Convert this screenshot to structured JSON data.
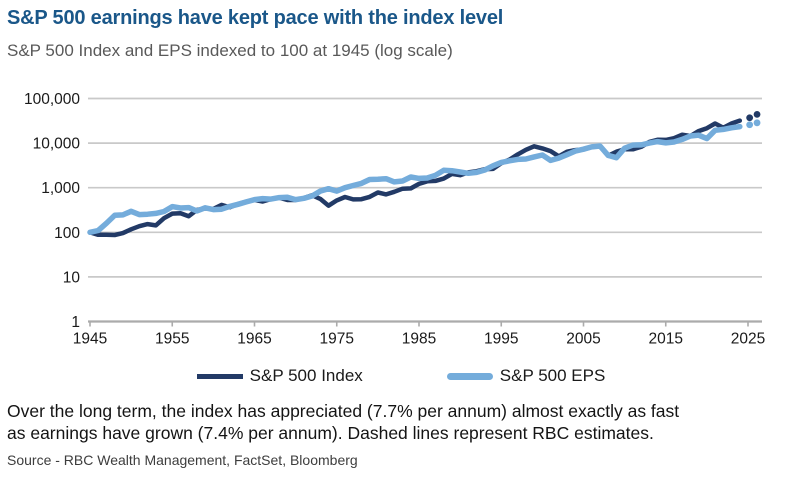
{
  "header": {
    "title": "S&P 500 earnings have kept pace with the index level",
    "subtitle": "S&P 500 Index and EPS indexed to 100 at 1945 (log scale)",
    "title_color": "#1A5789",
    "subtitle_color": "#595959"
  },
  "chart_data": {
    "type": "line",
    "title": "S&P 500 earnings have kept pace with the index level",
    "subtitle": "S&P 500 Index and EPS indexed to 100 at 1945 (log scale)",
    "xlabel": "",
    "ylabel": "",
    "y_scale": "log",
    "ylim": [
      1,
      100000
    ],
    "x_range": [
      1944,
      2027
    ],
    "grid": true,
    "grid_color": "#C9C9C9",
    "axis_color": "#ABABAB",
    "label_color": "#1a1a1a",
    "x_ticks": [
      1945,
      1955,
      1965,
      1975,
      1985,
      1995,
      2005,
      2015,
      2025
    ],
    "y_ticks": [
      {
        "value": 1,
        "label": "1"
      },
      {
        "value": 10,
        "label": "10"
      },
      {
        "value": 100,
        "label": "100"
      },
      {
        "value": 1000,
        "label": "1,000"
      },
      {
        "value": 10000,
        "label": "10,000"
      },
      {
        "value": 100000,
        "label": "100,000"
      }
    ],
    "legend_position": "bottom",
    "series": [
      {
        "name": "S&P 500 Index",
        "color": "#223A66",
        "stroke_width": 4.5,
        "start_year": 1945,
        "values": [
          100,
          88,
          88,
          87,
          96,
          117,
          137,
          153,
          143,
          207,
          262,
          268,
          230,
          317,
          344,
          334,
          412,
          363,
          432,
          488,
          532,
          490,
          556,
          598,
          530,
          531,
          588,
          680,
          562,
          395,
          519,
          619,
          548,
          553,
          621,
          782,
          706,
          810,
          950,
          963,
          1217,
          1395,
          1423,
          1600,
          2036,
          1902,
          2200,
          2350,
          2600,
          2646,
          3548,
          4267,
          5590,
          7081,
          8464,
          7606,
          6614,
          5068,
          6405,
          6981,
          7191,
          8170,
          8459,
          5203,
          6423,
          7244,
          7244,
          8215,
          10648,
          11860,
          11774,
          12896,
          15401,
          14441,
          18611,
          21637,
          27455,
          22117,
          27476,
          32000
        ],
        "estimates": {
          "years": [
            2025.2,
            2026.1
          ],
          "values": [
            37000,
            44000
          ]
        }
      },
      {
        "name": "S&P 500 EPS",
        "color": "#74ACDB",
        "stroke_width": 5.5,
        "start_year": 1945,
        "values": [
          100,
          110,
          160,
          240,
          245,
          296,
          250,
          255,
          265,
          292,
          377,
          350,
          358,
          300,
          355,
          323,
          330,
          380,
          425,
          480,
          541,
          570,
          555,
          600,
          610,
          540,
          580,
          650,
          840,
          950,
          840,
          1000,
          1120,
          1250,
          1530,
          1550,
          1590,
          1350,
          1410,
          1740,
          1620,
          1650,
          1900,
          2450,
          2400,
          2250,
          2100,
          2200,
          2500,
          3100,
          3700,
          4000,
          4300,
          4400,
          4900,
          5400,
          4100,
          4600,
          5500,
          6600,
          7300,
          8200,
          8600,
          5300,
          4700,
          7700,
          9000,
          9100,
          10000,
          10800,
          10100,
          10600,
          12100,
          14400,
          15000,
          12600,
          19400,
          20300,
          22000,
          23400
        ],
        "estimates": {
          "years": [
            2025.2,
            2026.1
          ],
          "values": [
            25800,
            28500
          ]
        }
      }
    ]
  },
  "legend": {
    "items": [
      {
        "label": "S&P 500 Index",
        "color": "#223A66"
      },
      {
        "label": "S&P 500 EPS",
        "color": "#74ACDB"
      }
    ]
  },
  "note": {
    "line1": "Over the long term, the index has appreciated (7.7% per annum) almost exactly as fast",
    "line2": "as earnings have grown (7.4% per annum). Dashed lines represent RBC estimates."
  },
  "source": {
    "text": "Source - RBC Wealth Management, FactSet, Bloomberg"
  }
}
